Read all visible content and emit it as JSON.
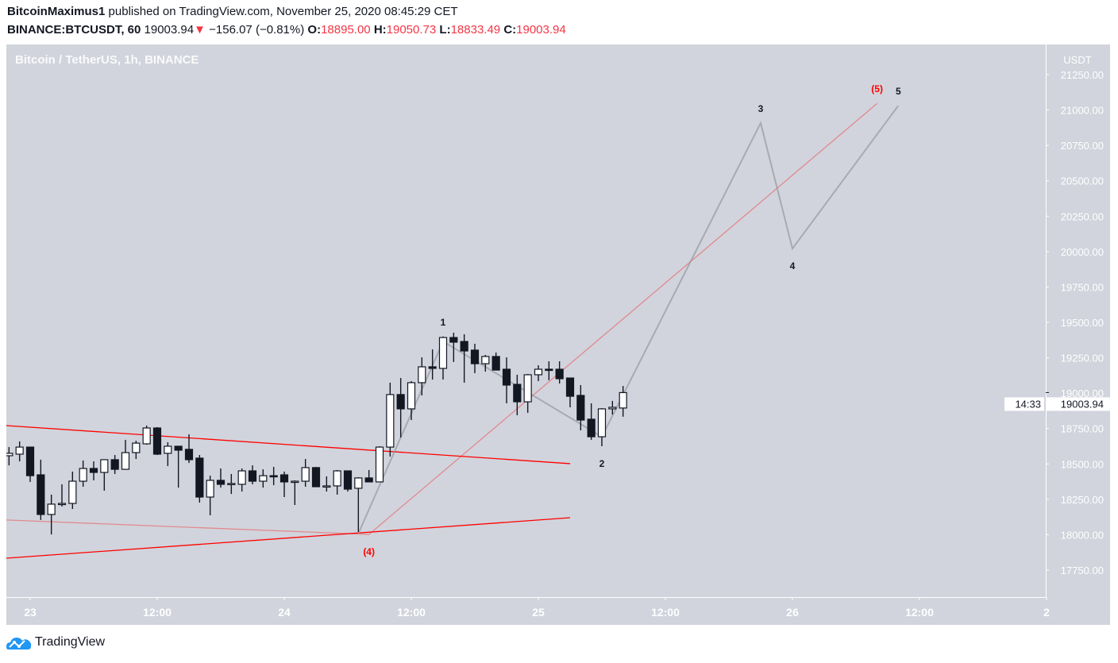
{
  "header": {
    "author": "BitcoinMaximus1",
    "published_text": "published on TradingView.com, November 25, 2020 08:45:29 CET",
    "symbol": "BINANCE:BTCUSDT, 60",
    "last": "19003.94",
    "direction_icon": "triangle-down-icon",
    "change": "−156.07 (−0.81%)",
    "o_label": "O:",
    "o": "18895.00",
    "h_label": "H:",
    "h": "19050.73",
    "l_label": "L:",
    "l": "18833.49",
    "c_label": "C:",
    "c": "19003.94"
  },
  "chart_title": "Bitcoin / TetherUS, 1h, BINANCE",
  "footer": {
    "logo_text": "TradingView",
    "logo_icon": "tradingview-cloud-icon"
  },
  "colors": {
    "background": "#d1d4dc",
    "up_body": "#ffffff",
    "down_body": "#131722",
    "trendline": "#ff0000",
    "wave_line": "#b2b5be",
    "logo": "#2196f3"
  },
  "chart_data": {
    "type": "candlestick",
    "title": "Bitcoin / TetherUS, 1h, BINANCE",
    "price_axis_label": "USDT",
    "ylim": [
      17650,
      21450
    ],
    "grid": false,
    "price_ticks": [
      "17750.00",
      "18000.00",
      "18250.00",
      "18500.00",
      "18750.00",
      "19000.00",
      "19250.00",
      "19500.00",
      "19750.00",
      "20000.00",
      "20250.00",
      "20500.00",
      "20750.00",
      "21000.00",
      "21250.00"
    ],
    "last_price_label": "19003.94",
    "countdown": "14:33",
    "time_ticks": [
      {
        "time": "2020-11-23T00:00",
        "label": "23"
      },
      {
        "time": "2020-11-23T12:00",
        "label": "12:00"
      },
      {
        "time": "2020-11-24T00:00",
        "label": "24"
      },
      {
        "time": "2020-11-24T12:00",
        "label": "12:00"
      },
      {
        "time": "2020-11-25T00:00",
        "label": "25"
      },
      {
        "time": "2020-11-25T12:00",
        "label": "12:00"
      },
      {
        "time": "2020-11-26T00:00",
        "label": "26"
      },
      {
        "time": "2020-11-26T12:00",
        "label": "12:00"
      },
      {
        "time": "2020-11-27T00:00",
        "label": "2"
      }
    ],
    "candles_columns": [
      "time",
      "open",
      "high",
      "low",
      "close"
    ],
    "candles": [
      [
        "2020-11-22T22:00",
        18558,
        18619,
        18490,
        18575
      ],
      [
        "2020-11-22T23:00",
        18569,
        18659,
        18518,
        18619
      ],
      [
        "2020-11-23T00:00",
        18619,
        18619,
        18373,
        18417
      ],
      [
        "2020-11-23T01:00",
        18423,
        18530,
        18104,
        18143
      ],
      [
        "2020-11-23T02:00",
        18143,
        18283,
        18002,
        18216
      ],
      [
        "2020-11-23T03:00",
        18216,
        18356,
        18199,
        18221
      ],
      [
        "2020-11-23T04:00",
        18221,
        18446,
        18182,
        18378
      ],
      [
        "2020-11-23T05:00",
        18378,
        18524,
        18339,
        18468
      ],
      [
        "2020-11-23T06:00",
        18468,
        18518,
        18384,
        18440
      ],
      [
        "2020-11-23T07:00",
        18440,
        18530,
        18311,
        18530
      ],
      [
        "2020-11-23T08:00",
        18530,
        18563,
        18429,
        18462
      ],
      [
        "2020-11-23T09:00",
        18462,
        18670,
        18462,
        18580
      ],
      [
        "2020-11-23T10:00",
        18580,
        18664,
        18535,
        18647
      ],
      [
        "2020-11-23T11:00",
        18642,
        18771,
        18636,
        18754
      ],
      [
        "2020-11-23T12:00",
        18754,
        18760,
        18563,
        18569
      ],
      [
        "2020-11-23T13:00",
        18575,
        18653,
        18485,
        18625
      ],
      [
        "2020-11-23T14:00",
        18625,
        18625,
        18333,
        18597
      ],
      [
        "2020-11-23T15:00",
        18603,
        18709,
        18507,
        18530
      ],
      [
        "2020-11-23T16:00",
        18541,
        18563,
        18227,
        18266
      ],
      [
        "2020-11-23T17:00",
        18266,
        18417,
        18137,
        18384
      ],
      [
        "2020-11-23T18:00",
        18384,
        18468,
        18333,
        18356
      ],
      [
        "2020-11-23T19:00",
        18356,
        18429,
        18288,
        18362
      ],
      [
        "2020-11-23T20:00",
        18356,
        18468,
        18305,
        18451
      ],
      [
        "2020-11-23T21:00",
        18451,
        18490,
        18356,
        18378
      ],
      [
        "2020-11-23T22:00",
        18378,
        18462,
        18333,
        18417
      ],
      [
        "2020-11-23T23:00",
        18417,
        18479,
        18350,
        18412
      ],
      [
        "2020-11-24T00:00",
        18423,
        18446,
        18266,
        18373
      ],
      [
        "2020-11-24T01:00",
        18373,
        18384,
        18210,
        18378
      ],
      [
        "2020-11-24T02:00",
        18378,
        18535,
        18339,
        18474
      ],
      [
        "2020-11-24T03:00",
        18474,
        18479,
        18339,
        18339
      ],
      [
        "2020-11-24T04:00",
        18339,
        18412,
        18305,
        18345
      ],
      [
        "2020-11-24T05:00",
        18345,
        18457,
        18283,
        18451
      ],
      [
        "2020-11-24T06:00",
        18451,
        18451,
        18305,
        18322
      ],
      [
        "2020-11-24T07:00",
        18328,
        18406,
        18019,
        18401
      ],
      [
        "2020-11-24T08:00",
        18401,
        18457,
        18373,
        18373
      ],
      [
        "2020-11-24T09:00",
        18373,
        18625,
        18373,
        18619
      ],
      [
        "2020-11-24T10:00",
        18619,
        19074,
        18552,
        18990
      ],
      [
        "2020-11-24T11:00",
        18990,
        19107,
        18687,
        18889
      ],
      [
        "2020-11-24T12:00",
        18889,
        19085,
        18810,
        19074
      ],
      [
        "2020-11-24T13:00",
        19074,
        19253,
        18984,
        19186
      ],
      [
        "2020-11-24T14:00",
        19186,
        19309,
        19096,
        19175
      ],
      [
        "2020-11-24T15:00",
        19175,
        19400,
        19096,
        19393
      ],
      [
        "2020-11-24T16:00",
        19393,
        19427,
        19220,
        19360
      ],
      [
        "2020-11-24T17:00",
        19365,
        19416,
        19074,
        19298
      ],
      [
        "2020-11-24T18:00",
        19304,
        19349,
        19141,
        19208
      ],
      [
        "2020-11-24T19:00",
        19208,
        19270,
        19152,
        19259
      ],
      [
        "2020-11-24T20:00",
        19259,
        19287,
        19163,
        19163
      ],
      [
        "2020-11-24T21:00",
        19169,
        19253,
        18928,
        19057
      ],
      [
        "2020-11-24T22:00",
        19062,
        19130,
        18844,
        18939
      ],
      [
        "2020-11-24T23:00",
        18939,
        19135,
        18861,
        19130
      ],
      [
        "2020-11-25T00:00",
        19130,
        19197,
        19085,
        19169
      ],
      [
        "2020-11-25T01:00",
        19169,
        19225,
        19091,
        19165
      ],
      [
        "2020-11-25T02:00",
        19169,
        19225,
        19068,
        19102
      ],
      [
        "2020-11-25T03:00",
        19107,
        19107,
        18900,
        18978
      ],
      [
        "2020-11-25T04:00",
        18984,
        19057,
        18737,
        18810
      ],
      [
        "2020-11-25T05:00",
        18816,
        18928,
        18670,
        18692
      ],
      [
        "2020-11-25T06:00",
        18692,
        18894,
        18625,
        18889
      ],
      [
        "2020-11-25T07:00",
        18889,
        18945,
        18849,
        18900
      ],
      [
        "2020-11-25T08:00",
        18895.0,
        19050.73,
        18833.49,
        19003.94
      ]
    ],
    "drawings": [
      {
        "kind": "trendline",
        "color": "#ff0000",
        "opacity": 1,
        "points": [
          [
            "2020-11-22T21:45",
            18771
          ],
          [
            "2020-11-25T03:00",
            18502
          ]
        ]
      },
      {
        "kind": "trendline",
        "color": "#ff0000",
        "opacity": 1,
        "points": [
          [
            "2020-11-22T21:45",
            17834
          ],
          [
            "2020-11-25T03:00",
            18120
          ]
        ]
      },
      {
        "kind": "path",
        "color": "#ff0000",
        "opacity": 0.35,
        "points": [
          [
            "2020-11-22T21:45",
            18104
          ],
          [
            "2020-11-24T08:00",
            18002
          ],
          [
            "2020-11-26T08:00",
            21047
          ]
        ]
      },
      {
        "kind": "wave",
        "color": "#9598a1",
        "opacity": 0.7,
        "points": [
          [
            "2020-11-24T07:00",
            18008
          ],
          [
            "2020-11-24T15:00",
            19365
          ],
          [
            "2020-11-25T06:00",
            18692
          ],
          [
            "2020-11-25T21:00",
            20908
          ],
          [
            "2020-11-26T00:00",
            20021
          ],
          [
            "2020-11-26T10:00",
            21031
          ]
        ]
      }
    ],
    "annotations": [
      {
        "text": "(4)",
        "time": "2020-11-24T08:00",
        "price": 18002,
        "side": "below",
        "color": "#ff0000"
      },
      {
        "text": "(5)",
        "time": "2020-11-26T08:00",
        "price": 21047,
        "side": "above",
        "color": "#ff0000"
      },
      {
        "text": "1",
        "time": "2020-11-24T15:00",
        "price": 19400,
        "side": "above",
        "color": "#131722"
      },
      {
        "text": "2",
        "time": "2020-11-25T06:00",
        "price": 18625,
        "side": "below",
        "color": "#131722"
      },
      {
        "text": "3",
        "time": "2020-11-25T21:00",
        "price": 20908,
        "side": "above",
        "color": "#131722"
      },
      {
        "text": "4",
        "time": "2020-11-26T00:00",
        "price": 20021,
        "side": "below",
        "color": "#131722"
      },
      {
        "text": "5",
        "time": "2020-11-26T10:00",
        "price": 21031,
        "side": "above",
        "color": "#131722"
      }
    ]
  }
}
